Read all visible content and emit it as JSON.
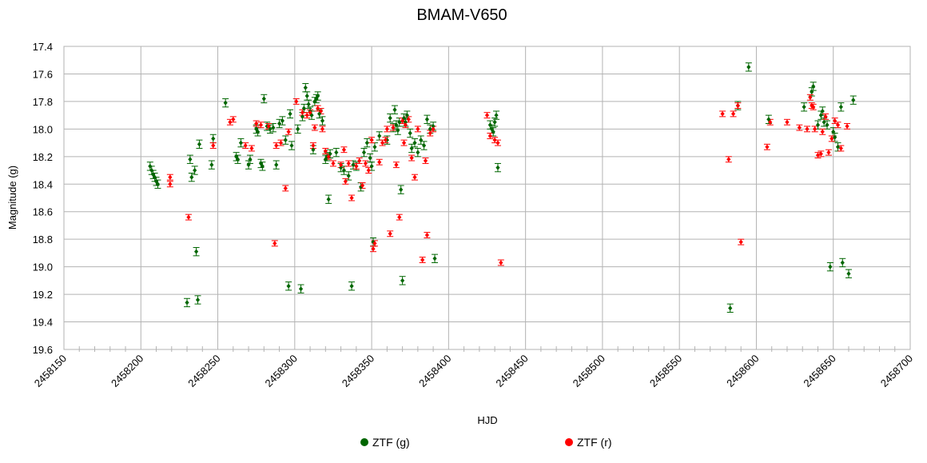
{
  "chart_data": {
    "type": "scatter",
    "title": "BMAM-V650",
    "xlabel": "HJD",
    "ylabel": "Magnitude (g)",
    "xlim": [
      2458150,
      2458700
    ],
    "ylim": [
      17.4,
      19.6
    ],
    "y_inverted": true,
    "grid": true,
    "legend_position": "bottom",
    "x_ticks": [
      "2458150",
      "2458200",
      "2458250",
      "2458300",
      "2458350",
      "2458400",
      "2458450",
      "2458500",
      "2458550",
      "2458600",
      "2458650",
      "2458700"
    ],
    "y_ticks": [
      "17.4",
      "17.6",
      "17.8",
      "18.0",
      "18.2",
      "18.4",
      "18.6",
      "18.8",
      "19.0",
      "19.2",
      "19.4",
      "19.6"
    ],
    "series": [
      {
        "name": "ZTF (g)",
        "color": "#006600",
        "error": 0.03,
        "points": [
          [
            2458206,
            18.27
          ],
          [
            2458207,
            18.3
          ],
          [
            2458208,
            18.33
          ],
          [
            2458209,
            18.35
          ],
          [
            2458210,
            18.38
          ],
          [
            2458211,
            18.4
          ],
          [
            2458230,
            19.26
          ],
          [
            2458232,
            18.22
          ],
          [
            2458233,
            18.35
          ],
          [
            2458235,
            18.3
          ],
          [
            2458236,
            18.89
          ],
          [
            2458237,
            19.24
          ],
          [
            2458238,
            18.11
          ],
          [
            2458246,
            18.26
          ],
          [
            2458247,
            18.07
          ],
          [
            2458255,
            17.81
          ],
          [
            2458262,
            18.2
          ],
          [
            2458263,
            18.22
          ],
          [
            2458265,
            18.1
          ],
          [
            2458270,
            18.26
          ],
          [
            2458271,
            18.22
          ],
          [
            2458275,
            18.0
          ],
          [
            2458276,
            18.02
          ],
          [
            2458278,
            18.25
          ],
          [
            2458279,
            18.27
          ],
          [
            2458280,
            17.78
          ],
          [
            2458282,
            17.98
          ],
          [
            2458284,
            18.0
          ],
          [
            2458286,
            17.99
          ],
          [
            2458288,
            18.26
          ],
          [
            2458290,
            17.96
          ],
          [
            2458292,
            17.94
          ],
          [
            2458294,
            18.08
          ],
          [
            2458296,
            19.14
          ],
          [
            2458297,
            17.89
          ],
          [
            2458298,
            18.12
          ],
          [
            2458302,
            18.0
          ],
          [
            2458304,
            19.16
          ],
          [
            2458305,
            17.91
          ],
          [
            2458306,
            17.85
          ],
          [
            2458307,
            17.7
          ],
          [
            2458308,
            17.76
          ],
          [
            2458309,
            17.82
          ],
          [
            2458310,
            17.87
          ],
          [
            2458311,
            17.9
          ],
          [
            2458312,
            18.15
          ],
          [
            2458313,
            17.8
          ],
          [
            2458314,
            17.78
          ],
          [
            2458315,
            17.76
          ],
          [
            2458316,
            17.89
          ],
          [
            2458318,
            17.94
          ],
          [
            2458320,
            18.22
          ],
          [
            2458321,
            18.2
          ],
          [
            2458322,
            18.51
          ],
          [
            2458323,
            18.18
          ],
          [
            2458327,
            18.17
          ],
          [
            2458330,
            18.28
          ],
          [
            2458332,
            18.3
          ],
          [
            2458335,
            18.34
          ],
          [
            2458337,
            19.14
          ],
          [
            2458338,
            18.26
          ],
          [
            2458340,
            18.27
          ],
          [
            2458343,
            18.42
          ],
          [
            2458345,
            18.17
          ],
          [
            2458347,
            18.1
          ],
          [
            2458349,
            18.21
          ],
          [
            2458350,
            18.27
          ],
          [
            2458351,
            18.82
          ],
          [
            2458352,
            18.13
          ],
          [
            2458355,
            18.05
          ],
          [
            2458360,
            18.08
          ],
          [
            2458362,
            17.92
          ],
          [
            2458364,
            17.99
          ],
          [
            2458365,
            17.86
          ],
          [
            2458366,
            17.97
          ],
          [
            2458367,
            18.01
          ],
          [
            2458368,
            17.95
          ],
          [
            2458369,
            18.44
          ],
          [
            2458370,
            19.1
          ],
          [
            2458371,
            17.92
          ],
          [
            2458372,
            17.95
          ],
          [
            2458373,
            17.9
          ],
          [
            2458375,
            18.03
          ],
          [
            2458376,
            18.14
          ],
          [
            2458378,
            18.1
          ],
          [
            2458380,
            18.17
          ],
          [
            2458382,
            18.08
          ],
          [
            2458384,
            18.12
          ],
          [
            2458386,
            17.93
          ],
          [
            2458388,
            18.0
          ],
          [
            2458390,
            17.98
          ],
          [
            2458391,
            18.94
          ],
          [
            2458427,
            17.97
          ],
          [
            2458428,
            18.0
          ],
          [
            2458429,
            18.02
          ],
          [
            2458430,
            17.95
          ],
          [
            2458431,
            17.9
          ],
          [
            2458432,
            18.28
          ],
          [
            2458583,
            19.3
          ],
          [
            2458588,
            17.83
          ],
          [
            2458595,
            17.55
          ],
          [
            2458608,
            17.93
          ],
          [
            2458631,
            17.84
          ],
          [
            2458636,
            17.73
          ],
          [
            2458637,
            17.69
          ],
          [
            2458640,
            17.97
          ],
          [
            2458642,
            17.9
          ],
          [
            2458643,
            17.87
          ],
          [
            2458644,
            17.95
          ],
          [
            2458646,
            17.97
          ],
          [
            2458648,
            19.0
          ],
          [
            2458650,
            18.02
          ],
          [
            2458651,
            18.06
          ],
          [
            2458653,
            18.13
          ],
          [
            2458655,
            17.84
          ],
          [
            2458656,
            18.97
          ],
          [
            2458660,
            19.05
          ],
          [
            2458663,
            17.79
          ]
        ]
      },
      {
        "name": "ZTF (r)",
        "color": "#ff0000",
        "error": 0.02,
        "points": [
          [
            2458219,
            18.35
          ],
          [
            2458219,
            18.4
          ],
          [
            2458231,
            18.64
          ],
          [
            2458247,
            18.12
          ],
          [
            2458258,
            17.95
          ],
          [
            2458260,
            17.93
          ],
          [
            2458268,
            18.12
          ],
          [
            2458272,
            18.14
          ],
          [
            2458275,
            17.96
          ],
          [
            2458278,
            17.97
          ],
          [
            2458283,
            17.98
          ],
          [
            2458287,
            18.83
          ],
          [
            2458288,
            18.12
          ],
          [
            2458291,
            18.1
          ],
          [
            2458294,
            18.43
          ],
          [
            2458296,
            18.02
          ],
          [
            2458301,
            17.8
          ],
          [
            2458305,
            17.88
          ],
          [
            2458308,
            17.9
          ],
          [
            2458310,
            17.88
          ],
          [
            2458312,
            18.12
          ],
          [
            2458313,
            17.99
          ],
          [
            2458315,
            17.85
          ],
          [
            2458317,
            17.87
          ],
          [
            2458318,
            18.0
          ],
          [
            2458320,
            18.16
          ],
          [
            2458322,
            18.2
          ],
          [
            2458325,
            18.25
          ],
          [
            2458330,
            18.26
          ],
          [
            2458332,
            18.15
          ],
          [
            2458333,
            18.38
          ],
          [
            2458335,
            18.25
          ],
          [
            2458337,
            18.5
          ],
          [
            2458340,
            18.27
          ],
          [
            2458342,
            18.23
          ],
          [
            2458344,
            18.41
          ],
          [
            2458346,
            18.25
          ],
          [
            2458348,
            18.3
          ],
          [
            2458350,
            18.08
          ],
          [
            2458351,
            18.87
          ],
          [
            2458352,
            18.83
          ],
          [
            2458355,
            18.24
          ],
          [
            2458357,
            18.1
          ],
          [
            2458359,
            18.08
          ],
          [
            2458360,
            18.0
          ],
          [
            2458362,
            18.76
          ],
          [
            2458364,
            17.99
          ],
          [
            2458366,
            18.26
          ],
          [
            2458368,
            18.64
          ],
          [
            2458370,
            17.94
          ],
          [
            2458371,
            18.1
          ],
          [
            2458372,
            17.97
          ],
          [
            2458374,
            17.93
          ],
          [
            2458376,
            18.21
          ],
          [
            2458378,
            18.35
          ],
          [
            2458380,
            18.0
          ],
          [
            2458383,
            18.95
          ],
          [
            2458385,
            18.23
          ],
          [
            2458386,
            18.77
          ],
          [
            2458388,
            18.03
          ],
          [
            2458390,
            18.0
          ],
          [
            2458425,
            17.9
          ],
          [
            2458427,
            18.05
          ],
          [
            2458430,
            18.08
          ],
          [
            2458432,
            18.1
          ],
          [
            2458434,
            18.97
          ],
          [
            2458578,
            17.89
          ],
          [
            2458582,
            18.22
          ],
          [
            2458585,
            17.89
          ],
          [
            2458588,
            17.83
          ],
          [
            2458590,
            18.82
          ],
          [
            2458607,
            18.13
          ],
          [
            2458609,
            17.95
          ],
          [
            2458620,
            17.95
          ],
          [
            2458628,
            17.99
          ],
          [
            2458633,
            18.0
          ],
          [
            2458635,
            17.77
          ],
          [
            2458636,
            17.83
          ],
          [
            2458637,
            17.84
          ],
          [
            2458638,
            18.0
          ],
          [
            2458640,
            18.19
          ],
          [
            2458642,
            18.18
          ],
          [
            2458643,
            18.02
          ],
          [
            2458645,
            17.91
          ],
          [
            2458647,
            18.17
          ],
          [
            2458649,
            18.07
          ],
          [
            2458651,
            17.94
          ],
          [
            2458653,
            17.97
          ],
          [
            2458655,
            18.14
          ],
          [
            2458659,
            17.98
          ]
        ]
      }
    ]
  }
}
